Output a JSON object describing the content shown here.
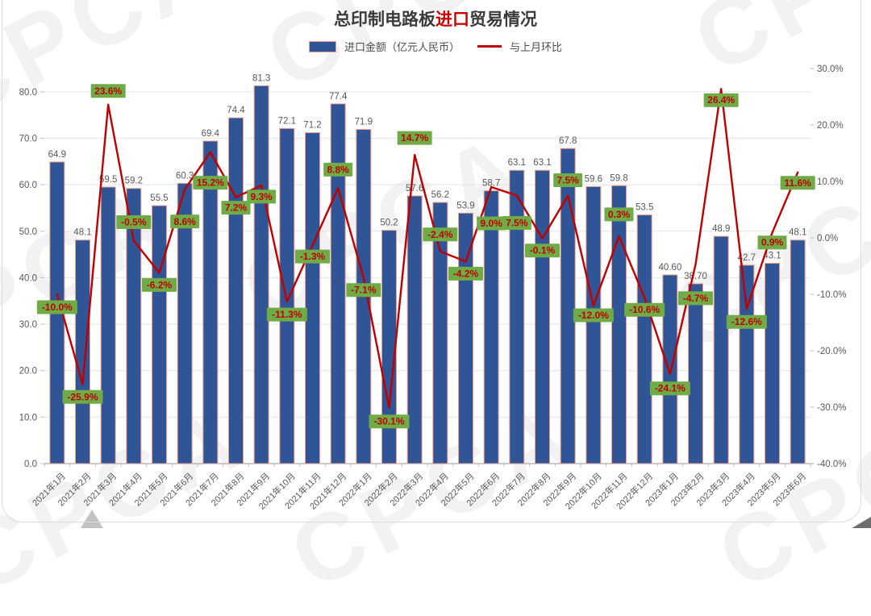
{
  "title": {
    "prefix": "总印制电路板",
    "highlight": "进口",
    "suffix": "贸易情况"
  },
  "legend": {
    "bar_label": "进口金额（亿元人民币）",
    "line_label": "与上月环比"
  },
  "watermark": {
    "text": "CPCA"
  },
  "colors": {
    "bar_fill": "#2F5597",
    "bar_stroke": "#F1A08C",
    "line": "#C00000",
    "pct_box_bg": "#6FAC47",
    "pct_text": "#C00000",
    "value_label": "#595959",
    "axis_text": "#595959",
    "gridline": "#E4E4E4",
    "axis_line": "#ABABAB",
    "title_text": "#3B3B3B",
    "title_highlight": "#CC0000"
  },
  "chart_data": {
    "type": "combo (bar + line)",
    "title": "总印制电路板进口贸易情况",
    "categories": [
      "2021年1月",
      "2021年2月",
      "2021年3月",
      "2021年4月",
      "2021年5月",
      "2021年6月",
      "2021年7月",
      "2021年8月",
      "2021年9月",
      "2021年10月",
      "2021年11月",
      "2021年12月",
      "2022年1月",
      "2022年2月",
      "2022年3月",
      "2022年4月",
      "2022年5月",
      "2022年6月",
      "2022年7月",
      "2022年8月",
      "2022年9月",
      "2022年10月",
      "2022年11月",
      "2022年12月",
      "2023年1月",
      "2023年2月",
      "2023年3月",
      "2023年4月",
      "2023年5月",
      "2023年6月"
    ],
    "series": [
      {
        "name": "进口金额（亿元人民币）",
        "type": "bar",
        "axis": "left",
        "values": [
          64.9,
          48.1,
          59.5,
          59.2,
          55.5,
          60.3,
          69.4,
          74.4,
          81.3,
          72.1,
          71.2,
          77.4,
          71.9,
          50.2,
          57.6,
          56.2,
          53.9,
          58.7,
          63.1,
          63.1,
          67.8,
          59.6,
          59.8,
          53.5,
          40.6,
          38.7,
          48.9,
          42.7,
          43.1,
          48.1
        ],
        "labels": [
          "64.9",
          "48.1",
          "59.5",
          "59.2",
          "55.5",
          "60.3",
          "69.4",
          "74.4",
          "81.3",
          "72.1",
          "71.2",
          "77.4",
          "71.9",
          "50.2",
          "57.6",
          "56.2",
          "53.9",
          "58.7",
          "63.1",
          "63.1",
          "67.8",
          "59.6",
          "59.8",
          "53.5",
          "40.60",
          "38.70",
          "48.9",
          "42.7",
          "43.1",
          "48.1"
        ]
      },
      {
        "name": "与上月环比",
        "type": "line",
        "axis": "right",
        "values": [
          -10.0,
          -25.9,
          23.6,
          -0.5,
          -6.2,
          8.6,
          15.2,
          7.2,
          9.3,
          -11.3,
          -1.3,
          8.8,
          -7.1,
          -30.1,
          14.7,
          -2.4,
          -4.2,
          9.0,
          7.5,
          -0.1,
          7.5,
          -12.0,
          0.3,
          -10.6,
          -24.1,
          -4.7,
          26.4,
          -12.6,
          0.9,
          11.6
        ],
        "labels": [
          "-10.0%",
          "-25.9%",
          "23.6%",
          "-0.5%",
          "-6.2%",
          "8.6%",
          "15.2%",
          "7.2%",
          "9.3%",
          "-11.3%",
          "-1.3%",
          "8.8%",
          "-7.1%",
          "-30.1%",
          "14.7%",
          "-2.4%",
          "-4.2%",
          "9.0%",
          "7.5%",
          "-0.1%",
          "7.5%",
          "-12.0%",
          "0.3%",
          "-10.6%",
          "-24.1%",
          "-4.7%",
          "26.4%",
          "-12.6%",
          "0.9%",
          "11.6%"
        ],
        "label_dy": [
          16,
          16,
          -17,
          -23,
          15,
          40,
          38,
          13,
          14,
          16,
          14,
          -23,
          15,
          17,
          -21,
          -21,
          15,
          45,
          34,
          15,
          -19,
          12,
          -27,
          15,
          18,
          42,
          14,
          16,
          12,
          13
        ]
      }
    ],
    "left_axis": {
      "min": 0,
      "max": 85,
      "tick_values": [
        0,
        10,
        20,
        30,
        40,
        50,
        60,
        70,
        80
      ],
      "tick_labels": [
        "0.0",
        "10.0",
        "20.0",
        "30.0",
        "40.0",
        "50.0",
        "60.0",
        "70.0",
        "80.0"
      ]
    },
    "right_axis": {
      "min": -40,
      "max": 30,
      "tick_values": [
        30,
        20,
        10,
        0,
        -10,
        -20,
        -30,
        -40
      ],
      "tick_labels": [
        "30.0%",
        "20.0%",
        "10.0%",
        "0.0%",
        "-10.0%",
        "-20.0%",
        "-30.0%",
        "-40.0%"
      ]
    },
    "grid": "horizontal gridlines at left-axis ticks",
    "legend_position": "top-center",
    "x_label_rotation": -45
  }
}
